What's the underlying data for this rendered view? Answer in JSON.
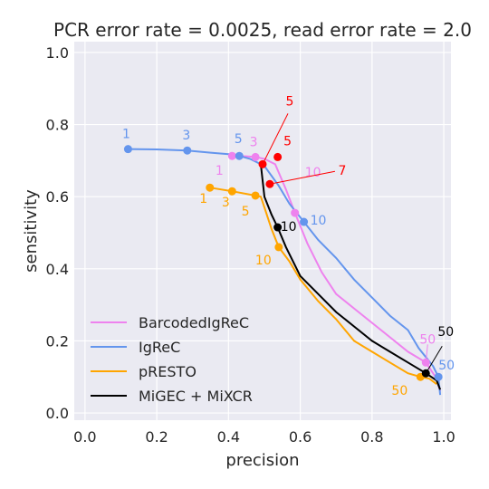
{
  "chart_data": {
    "type": "line",
    "title": "PCR error rate = 0.0025, read error rate = 2.0",
    "xlabel": "precision",
    "ylabel": "sensitivity",
    "xlim": [
      -0.03,
      1.02
    ],
    "ylim": [
      -0.02,
      1.03
    ],
    "xticks": [
      "0.0",
      "0.2",
      "0.4",
      "0.6",
      "0.8",
      "1.0"
    ],
    "yticks": [
      "0.0",
      "0.2",
      "0.4",
      "0.6",
      "0.8",
      "1.0"
    ],
    "grid": true,
    "legend_position": "lower-left",
    "series": [
      {
        "name": "BarcodedIgReC",
        "color": "#ee82ee",
        "points": [
          [
            0.41,
            0.713
          ],
          [
            0.45,
            0.712
          ],
          [
            0.475,
            0.71
          ],
          [
            0.5,
            0.705
          ],
          [
            0.53,
            0.69
          ],
          [
            0.56,
            0.62
          ],
          [
            0.585,
            0.555
          ],
          [
            0.62,
            0.47
          ],
          [
            0.66,
            0.39
          ],
          [
            0.7,
            0.33
          ],
          [
            0.75,
            0.29
          ],
          [
            0.8,
            0.25
          ],
          [
            0.85,
            0.21
          ],
          [
            0.9,
            0.17
          ],
          [
            0.95,
            0.14
          ],
          [
            0.98,
            0.095
          ],
          [
            0.99,
            0.06
          ]
        ],
        "markers": [
          {
            "x": 0.41,
            "y": 0.713,
            "label": "1"
          },
          {
            "x": 0.475,
            "y": 0.71,
            "label": "3"
          },
          {
            "x": 0.585,
            "y": 0.555,
            "label": "10"
          },
          {
            "x": 0.95,
            "y": 0.14,
            "label": "50"
          }
        ]
      },
      {
        "name": "IgReC",
        "color": "#6495ed",
        "points": [
          [
            0.12,
            0.732
          ],
          [
            0.2,
            0.731
          ],
          [
            0.285,
            0.728
          ],
          [
            0.35,
            0.722
          ],
          [
            0.4,
            0.718
          ],
          [
            0.43,
            0.713
          ],
          [
            0.46,
            0.705
          ],
          [
            0.5,
            0.685
          ],
          [
            0.54,
            0.63
          ],
          [
            0.57,
            0.58
          ],
          [
            0.61,
            0.53
          ],
          [
            0.65,
            0.48
          ],
          [
            0.7,
            0.43
          ],
          [
            0.75,
            0.37
          ],
          [
            0.8,
            0.32
          ],
          [
            0.85,
            0.27
          ],
          [
            0.9,
            0.23
          ],
          [
            0.93,
            0.18
          ],
          [
            0.97,
            0.13
          ],
          [
            0.985,
            0.1
          ],
          [
            0.99,
            0.05
          ]
        ],
        "markers": [
          {
            "x": 0.12,
            "y": 0.732,
            "label": "1"
          },
          {
            "x": 0.285,
            "y": 0.728,
            "label": "3"
          },
          {
            "x": 0.43,
            "y": 0.713,
            "label": "5"
          },
          {
            "x": 0.61,
            "y": 0.53,
            "label": "10"
          },
          {
            "x": 0.985,
            "y": 0.1,
            "label": "50"
          }
        ]
      },
      {
        "name": "pRESTO",
        "color": "#ffa500",
        "points": [
          [
            0.348,
            0.625
          ],
          [
            0.41,
            0.615
          ],
          [
            0.475,
            0.603
          ],
          [
            0.49,
            0.6
          ],
          [
            0.5,
            0.57
          ],
          [
            0.52,
            0.51
          ],
          [
            0.54,
            0.46
          ],
          [
            0.57,
            0.42
          ],
          [
            0.6,
            0.37
          ],
          [
            0.65,
            0.31
          ],
          [
            0.7,
            0.26
          ],
          [
            0.75,
            0.2
          ],
          [
            0.8,
            0.17
          ],
          [
            0.85,
            0.14
          ],
          [
            0.9,
            0.11
          ],
          [
            0.935,
            0.1
          ],
          [
            0.96,
            0.095
          ],
          [
            0.98,
            0.08
          ]
        ],
        "markers": [
          {
            "x": 0.348,
            "y": 0.625,
            "label": "1"
          },
          {
            "x": 0.41,
            "y": 0.615,
            "label": "3"
          },
          {
            "x": 0.475,
            "y": 0.603,
            "label": "5"
          },
          {
            "x": 0.54,
            "y": 0.46,
            "label": "10"
          },
          {
            "x": 0.935,
            "y": 0.1,
            "label": "50"
          }
        ]
      },
      {
        "name": "MiGEC + MiXCR",
        "color": "#000000",
        "points": [
          [
            0.49,
            0.69
          ],
          [
            0.5,
            0.6
          ],
          [
            0.52,
            0.55
          ],
          [
            0.537,
            0.515
          ],
          [
            0.56,
            0.46
          ],
          [
            0.6,
            0.38
          ],
          [
            0.65,
            0.33
          ],
          [
            0.7,
            0.28
          ],
          [
            0.75,
            0.24
          ],
          [
            0.8,
            0.2
          ],
          [
            0.85,
            0.17
          ],
          [
            0.9,
            0.14
          ],
          [
            0.95,
            0.11
          ],
          [
            0.98,
            0.09
          ],
          [
            0.99,
            0.065
          ]
        ],
        "markers": [
          {
            "x": 0.537,
            "y": 0.515,
            "label": "10"
          },
          {
            "x": 0.95,
            "y": 0.11,
            "label": "50"
          }
        ]
      }
    ],
    "highlight_points": {
      "color": "#ff0000",
      "items": [
        {
          "x": 0.495,
          "y": 0.69,
          "label": "5"
        },
        {
          "x": 0.537,
          "y": 0.71,
          "label": "5"
        },
        {
          "x": 0.515,
          "y": 0.635,
          "label": "7"
        }
      ]
    }
  }
}
